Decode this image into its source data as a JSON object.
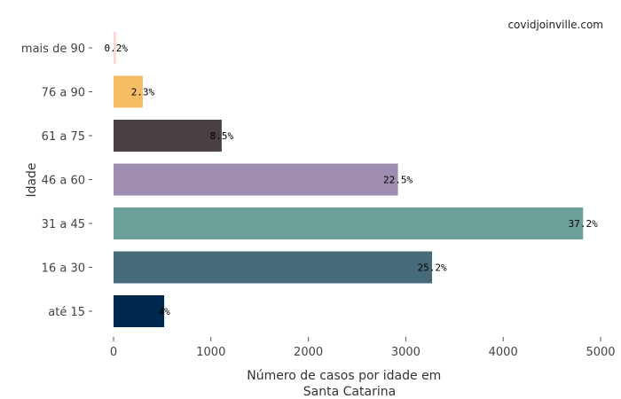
{
  "source_label": "covidjoinville.com",
  "chart_data": {
    "type": "bar",
    "orientation": "horizontal",
    "categories": [
      "até 15",
      "16 a 30",
      "31 a 45",
      "46 a 60",
      "61 a 75",
      "76 a 90",
      "mais de 90"
    ],
    "values": [
      520,
      3270,
      4820,
      2920,
      1110,
      300,
      25
    ],
    "data_labels": [
      "4%",
      "25.2%",
      "37.2%",
      "22.5%",
      "8.5%",
      "2.3%",
      "0.2%"
    ],
    "colors": [
      "#00284f",
      "#456b7b",
      "#6ea09a",
      "#9f8db1",
      "#4a4041",
      "#f5bc63",
      "#fbd6d2"
    ],
    "xlabel_lines": [
      "Número de casos por idade em",
      "Santa Catarina"
    ],
    "ylabel": "Idade",
    "xlim": [
      0,
      5000
    ],
    "xticks": [
      0,
      1000,
      2000,
      3000,
      4000,
      5000
    ],
    "grid": false
  }
}
